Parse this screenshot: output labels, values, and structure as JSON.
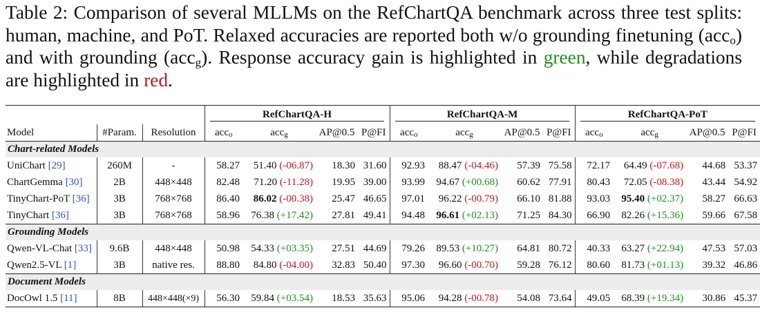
{
  "caption": {
    "part1": "Table 2: Comparison of several MLLMs on the RefChartQA benchmark across three test splits: human, machine, and PoT. Relaxed accuracies are reported both w/o grounding finetuning (acc",
    "sub_o": "o",
    "part2": ") and with grounding (acc",
    "sub_g": "g",
    "part3": "). Response accuracy gain is highlighted in ",
    "green_word": "green",
    "part4": ", while degradations are highlighted in ",
    "red_word": "red",
    "part5": "."
  },
  "table": {
    "groups": [
      "RefChartQA-H",
      "RefChartQA-M",
      "RefChartQA-PoT"
    ],
    "headers": {
      "model": "Model",
      "params": "#Param.",
      "resolution": "Resolution",
      "acc": "acc",
      "sub_o": "o",
      "sub_g": "g",
      "ap": "AP@0.5",
      "pfi": "P@FI"
    },
    "sections": [
      {
        "title": "Chart-related Models",
        "rows": [
          {
            "model": "UniChart ",
            "ref": "[29]",
            "params": "260M",
            "resolution": "-",
            "h": {
              "acc_o": "58.27",
              "acc_g": "51.40",
              "delta": "(-06.87)",
              "ap": "18.30",
              "pfi": "31.60"
            },
            "m": {
              "acc_o": "92.93",
              "acc_g": "88.47",
              "delta": "(-04.46)",
              "ap": "57.39",
              "pfi": "75.58"
            },
            "p": {
              "acc_o": "72.17",
              "acc_g": "64.49",
              "delta": "(-07.68)",
              "ap": "44.68",
              "pfi": "53.37"
            }
          },
          {
            "model": "ChartGemma ",
            "ref": "[30]",
            "params": "2B",
            "resolution": "448×448",
            "h": {
              "acc_o": "82.48",
              "acc_g": "71.20",
              "delta": "(-11.28)",
              "ap": "19.95",
              "pfi": "39.00"
            },
            "m": {
              "acc_o": "93.99",
              "acc_g": "94.67",
              "delta": "(+00.68)",
              "ap": "60.62",
              "pfi": "77.91"
            },
            "p": {
              "acc_o": "80.43",
              "acc_g": "72.05",
              "delta": "(-08.38)",
              "ap": "43.44",
              "pfi": "54.92"
            }
          },
          {
            "model": "TinyChart-PoT ",
            "ref": "[36]",
            "params": "3B",
            "resolution": "768×768",
            "h": {
              "acc_o": "86.40",
              "acc_g": "86.02",
              "delta": "(-00.38)",
              "ap": "25.47",
              "pfi": "46.65"
            },
            "m": {
              "acc_o": "97.01",
              "acc_g": "96.22",
              "delta": "(-00.79)",
              "ap": "66.10",
              "pfi": "81.88"
            },
            "p": {
              "acc_o": "93.03",
              "acc_g": "95.40",
              "delta": "(+02.37)",
              "ap": "58.27",
              "pfi": "66.63"
            }
          },
          {
            "model": "TinyChart ",
            "ref": "[36]",
            "params": "3B",
            "resolution": "768×768",
            "h": {
              "acc_o": "58.96",
              "acc_g": "76.38",
              "delta": "(+17.42)",
              "ap": "27.81",
              "pfi": "49.41"
            },
            "m": {
              "acc_o": "94.48",
              "acc_g": "96.61",
              "delta": "(+02.13)",
              "ap": "71.25",
              "pfi": "84.30"
            },
            "p": {
              "acc_o": "66.90",
              "acc_g": "82.26",
              "delta": "(+15.36)",
              "ap": "59.66",
              "pfi": "67.58"
            }
          }
        ]
      },
      {
        "title": "Grounding Models",
        "rows": [
          {
            "model": "Qwen-VL-Chat ",
            "ref": "[33]",
            "params": "9.6B",
            "resolution": "448×448",
            "h": {
              "acc_o": "50.98",
              "acc_g": "54.33",
              "delta": "(+03.35)",
              "ap": "27.51",
              "pfi": "44.69"
            },
            "m": {
              "acc_o": "79.26",
              "acc_g": "89.53",
              "delta": "(+10.27)",
              "ap": "64.81",
              "pfi": "80.72"
            },
            "p": {
              "acc_o": "40.33",
              "acc_g": "63.27",
              "delta": "(+22.94)",
              "ap": "47.53",
              "pfi": "57.03"
            }
          },
          {
            "model": "Qwen2.5-VL ",
            "ref": "[1]",
            "params": "3B",
            "resolution": "native res.",
            "h": {
              "acc_o": "88.80",
              "acc_g": "84.80",
              "delta": "(-04.00)",
              "ap": "32.83",
              "pfi": "50.40"
            },
            "m": {
              "acc_o": "97.30",
              "acc_g": "96.60",
              "delta": "(-00.70)",
              "ap": "59.28",
              "pfi": "76.12"
            },
            "p": {
              "acc_o": "80.60",
              "acc_g": "81.73",
              "delta": "(+01.13)",
              "ap": "39.32",
              "pfi": "46.86"
            }
          }
        ]
      },
      {
        "title": "Document Models",
        "rows": [
          {
            "model": "DocOwl 1.5 ",
            "ref": "[11]",
            "params": "8B",
            "resolution": "448×448(×9)",
            "h": {
              "acc_o": "56.30",
              "acc_g": "59.84",
              "delta": "(+03.54)",
              "ap": "18.53",
              "pfi": "35.63"
            },
            "m": {
              "acc_o": "95.06",
              "acc_g": "94.28",
              "delta": "(-00.78)",
              "ap": "54.08",
              "pfi": "73.64"
            },
            "p": {
              "acc_o": "49.05",
              "acc_g": "68.39",
              "delta": "(+19.34)",
              "ap": "30.86",
              "pfi": "45.37"
            }
          }
        ]
      }
    ]
  }
}
